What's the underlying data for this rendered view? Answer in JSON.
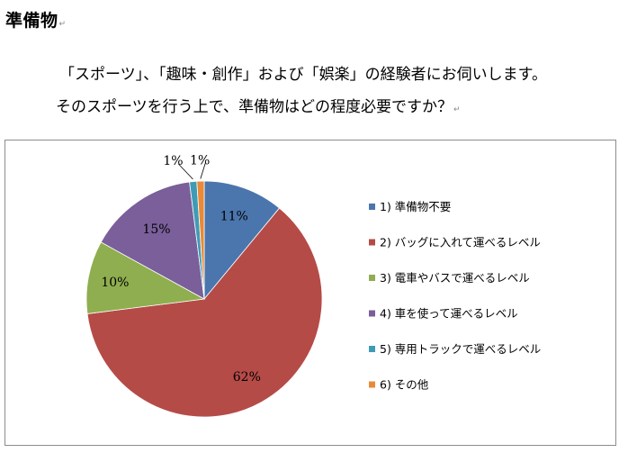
{
  "page": {
    "heading": "準備物",
    "question_line1": "「スポーツ」、「趣味・創作」および「娯楽」の経験者にお伺いします。",
    "question_line2": "そのスポーツを行う上で、準備物はどの程度必要ですか？"
  },
  "chart_data": {
    "type": "pie",
    "title": "",
    "legend_position": "right",
    "slices": [
      {
        "label": "1) 準備物不要",
        "value": 11,
        "display": "11%",
        "color": "#4a76ad"
      },
      {
        "label": "2) バッグに入れて運べるレベル",
        "value": 62,
        "display": "62%",
        "color": "#b54b47"
      },
      {
        "label": "3) 電車やバスで運べるレベル",
        "value": 10,
        "display": "10%",
        "color": "#8fae4f"
      },
      {
        "label": "4) 車を使って運べるレベル",
        "value": 15,
        "display": "15%",
        "color": "#7a5f9a"
      },
      {
        "label": "5) 専用トラックで運べるレベル",
        "value": 1,
        "display": "1%",
        "color": "#3f9bb5"
      },
      {
        "label": "6) その他",
        "value": 1,
        "display": "1%",
        "color": "#e88a3a"
      }
    ]
  }
}
